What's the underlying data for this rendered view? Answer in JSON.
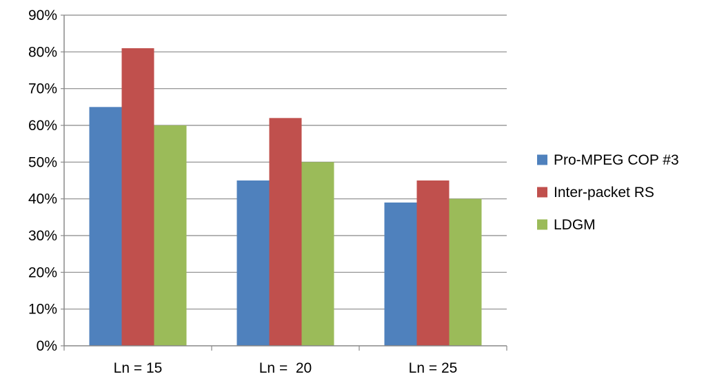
{
  "chart_data": {
    "type": "bar",
    "categories": [
      "Ln = 15",
      "Ln =  20",
      "Ln = 25"
    ],
    "series": [
      {
        "name": "Pro-MPEG COP #3",
        "values": [
          65,
          45,
          39
        ],
        "color": "#4f81bd"
      },
      {
        "name": "Inter-packet RS",
        "values": [
          81,
          62,
          45
        ],
        "color": "#c0504d"
      },
      {
        "name": "LDGM",
        "values": [
          60,
          50,
          40
        ],
        "color": "#9bbb59"
      }
    ],
    "ylim": [
      0,
      90
    ],
    "y_ticks": [
      0,
      10,
      20,
      30,
      40,
      50,
      60,
      70,
      80,
      90
    ],
    "y_tick_format": "percent",
    "grid": true,
    "legend_position": "right",
    "title": "",
    "xlabel": "",
    "ylabel": ""
  }
}
